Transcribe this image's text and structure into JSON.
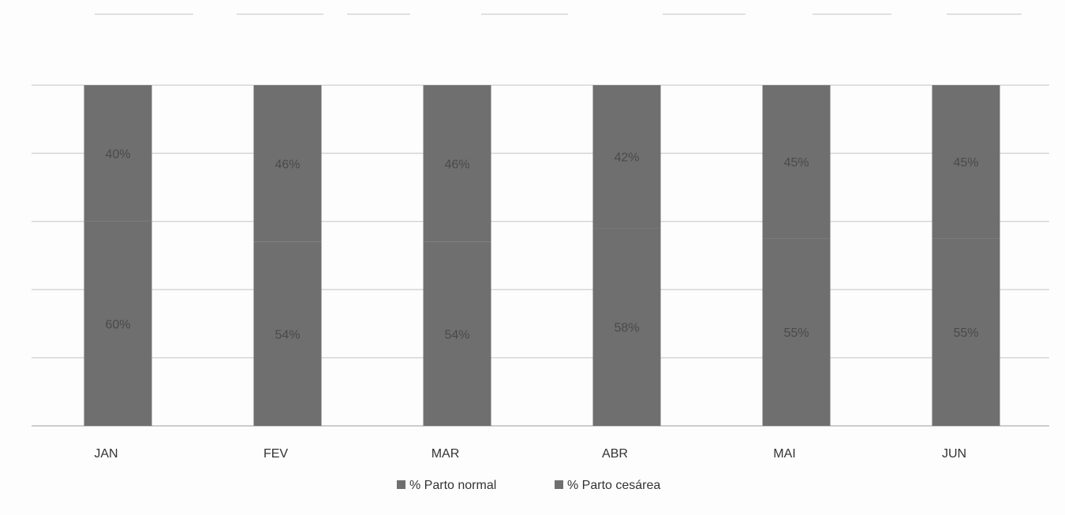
{
  "chart_data": {
    "type": "bar",
    "stacked": true,
    "percent_stacked": true,
    "categories": [
      "JAN",
      "FEV",
      "MAR",
      "ABR",
      "MAI",
      "JUN"
    ],
    "series": [
      {
        "name": "% Parto normal",
        "values": [
          60,
          54,
          54,
          58,
          55,
          55
        ],
        "labels": [
          "60%",
          "54%",
          "54%",
          "58%",
          "55%",
          "55%"
        ],
        "color": "#6f6f6f"
      },
      {
        "name": "% Parto cesárea",
        "values": [
          40,
          46,
          46,
          42,
          45,
          45
        ],
        "labels": [
          "40%",
          "46%",
          "46%",
          "42%",
          "45%",
          "45%"
        ],
        "color": "#6f6f6f"
      }
    ],
    "ylim": [
      0,
      100
    ],
    "grid": true,
    "legend_position": "bottom"
  }
}
